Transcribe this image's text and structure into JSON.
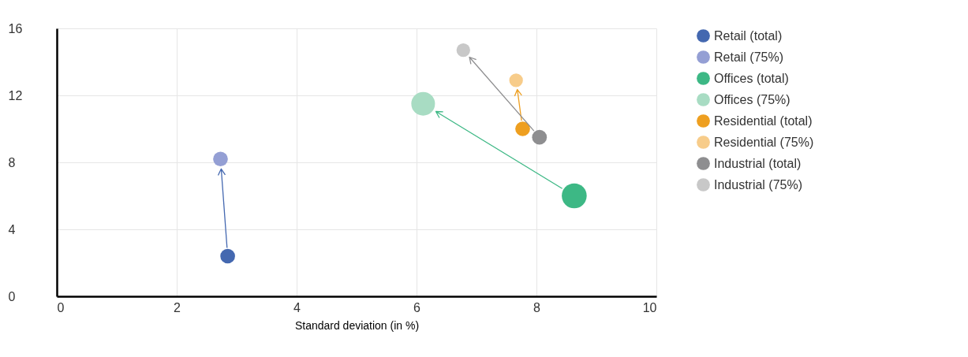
{
  "chart_data": {
    "type": "bubble",
    "xlabel": "Standard deviation (in %)",
    "xlim": [
      0,
      10
    ],
    "xticks": [
      0,
      2,
      4,
      6,
      8,
      10
    ],
    "ylim": [
      0,
      16
    ],
    "yticks": [
      0,
      4,
      8,
      12,
      16
    ],
    "grid": true,
    "legend": "right",
    "marker": "circle",
    "series": [
      {
        "name": "Retail (total)",
        "color": "#4468b0",
        "x": [
          2.85
        ],
        "values": [
          2.4
        ],
        "sizes": [
          0.35
        ]
      },
      {
        "name": "Retail (75%)",
        "color": "#949fd4",
        "x": [
          2.73
        ],
        "values": [
          8.2
        ],
        "sizes": [
          0.35
        ]
      },
      {
        "name": "Offices (total)",
        "color": "#3db885",
        "x": [
          8.63
        ],
        "values": [
          6.0
        ],
        "sizes": [
          1
        ]
      },
      {
        "name": "Offices (75%)",
        "color": "#a8dcc3",
        "x": [
          6.11
        ],
        "values": [
          11.5
        ],
        "sizes": [
          0.9
        ]
      },
      {
        "name": "Residential (total)",
        "color": "#ee9f20",
        "x": [
          7.77
        ],
        "values": [
          10.0
        ],
        "sizes": [
          0.35
        ]
      },
      {
        "name": "Residential (75%)",
        "color": "#f7cc8a",
        "x": [
          7.66
        ],
        "values": [
          12.9
        ],
        "sizes": [
          0.3
        ]
      },
      {
        "name": "Industrial (total)",
        "color": "#8e8e90",
        "x": [
          8.05
        ],
        "values": [
          9.5
        ],
        "sizes": [
          0.35
        ]
      },
      {
        "name": "Industrial (75%)",
        "color": "#c8c8c8",
        "x": [
          6.78
        ],
        "values": [
          14.7
        ],
        "sizes": [
          0.3
        ]
      }
    ]
  }
}
